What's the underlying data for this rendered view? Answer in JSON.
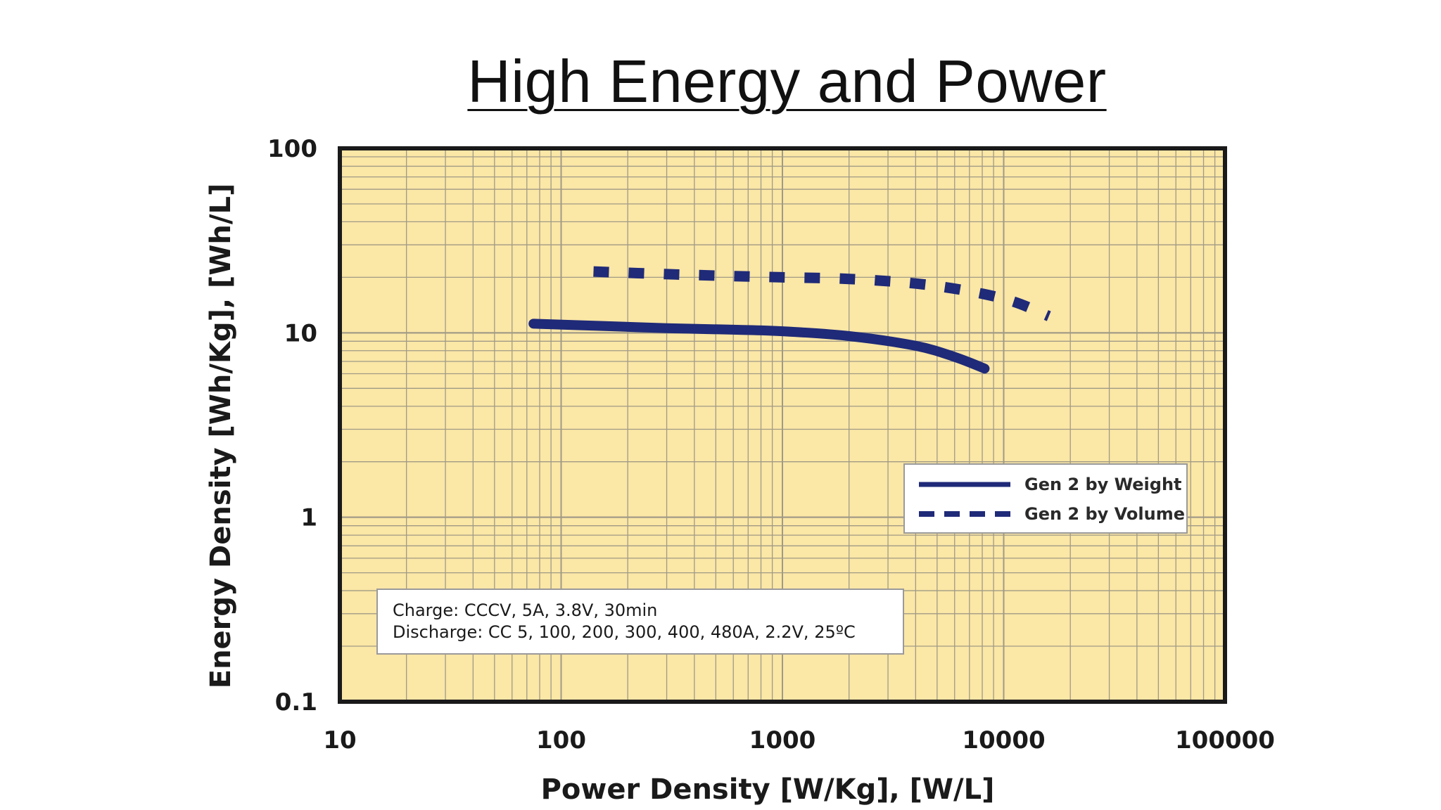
{
  "slide": {
    "title": "High Energy and Power"
  },
  "colors": {
    "plot_background": "#fbe7a6",
    "grid": "#a09a86",
    "frame": "#1a1a1a",
    "series": "#1f2a78"
  },
  "chart_data": {
    "type": "line",
    "x_scale": "log",
    "y_scale": "log",
    "xlim": [
      10,
      100000
    ],
    "ylim": [
      0.1,
      100
    ],
    "xlabel": "Power Density [W/Kg], [W/L]",
    "ylabel": "Energy Density [Wh/Kg], [Wh/L]",
    "x_ticks": [
      "10",
      "100",
      "1000",
      "10000",
      "100000"
    ],
    "y_ticks": [
      "0.1",
      "1",
      "10",
      "100"
    ],
    "grid": true,
    "legend_position": "right, below curves",
    "series": [
      {
        "name": "Gen 2 by Weight",
        "style": "solid",
        "points": [
          [
            75,
            11.2
          ],
          [
            150,
            10.9
          ],
          [
            300,
            10.6
          ],
          [
            600,
            10.4
          ],
          [
            1000,
            10.2
          ],
          [
            2000,
            9.6
          ],
          [
            4000,
            8.5
          ],
          [
            6000,
            7.4
          ],
          [
            8200,
            6.4
          ]
        ]
      },
      {
        "name": "Gen 2 by Volume",
        "style": "dashed",
        "points": [
          [
            140,
            21.5
          ],
          [
            300,
            20.8
          ],
          [
            600,
            20.3
          ],
          [
            1000,
            20.0
          ],
          [
            2000,
            19.6
          ],
          [
            4000,
            18.5
          ],
          [
            7000,
            16.8
          ],
          [
            11000,
            14.8
          ],
          [
            16000,
            12.3
          ]
        ]
      }
    ],
    "annotation": {
      "line1": "Charge: CCCV, 5A, 3.8V, 30min",
      "line2": "Discharge: CC 5, 100, 200, 300, 400, 480A, 2.2V, 25ºC"
    }
  }
}
